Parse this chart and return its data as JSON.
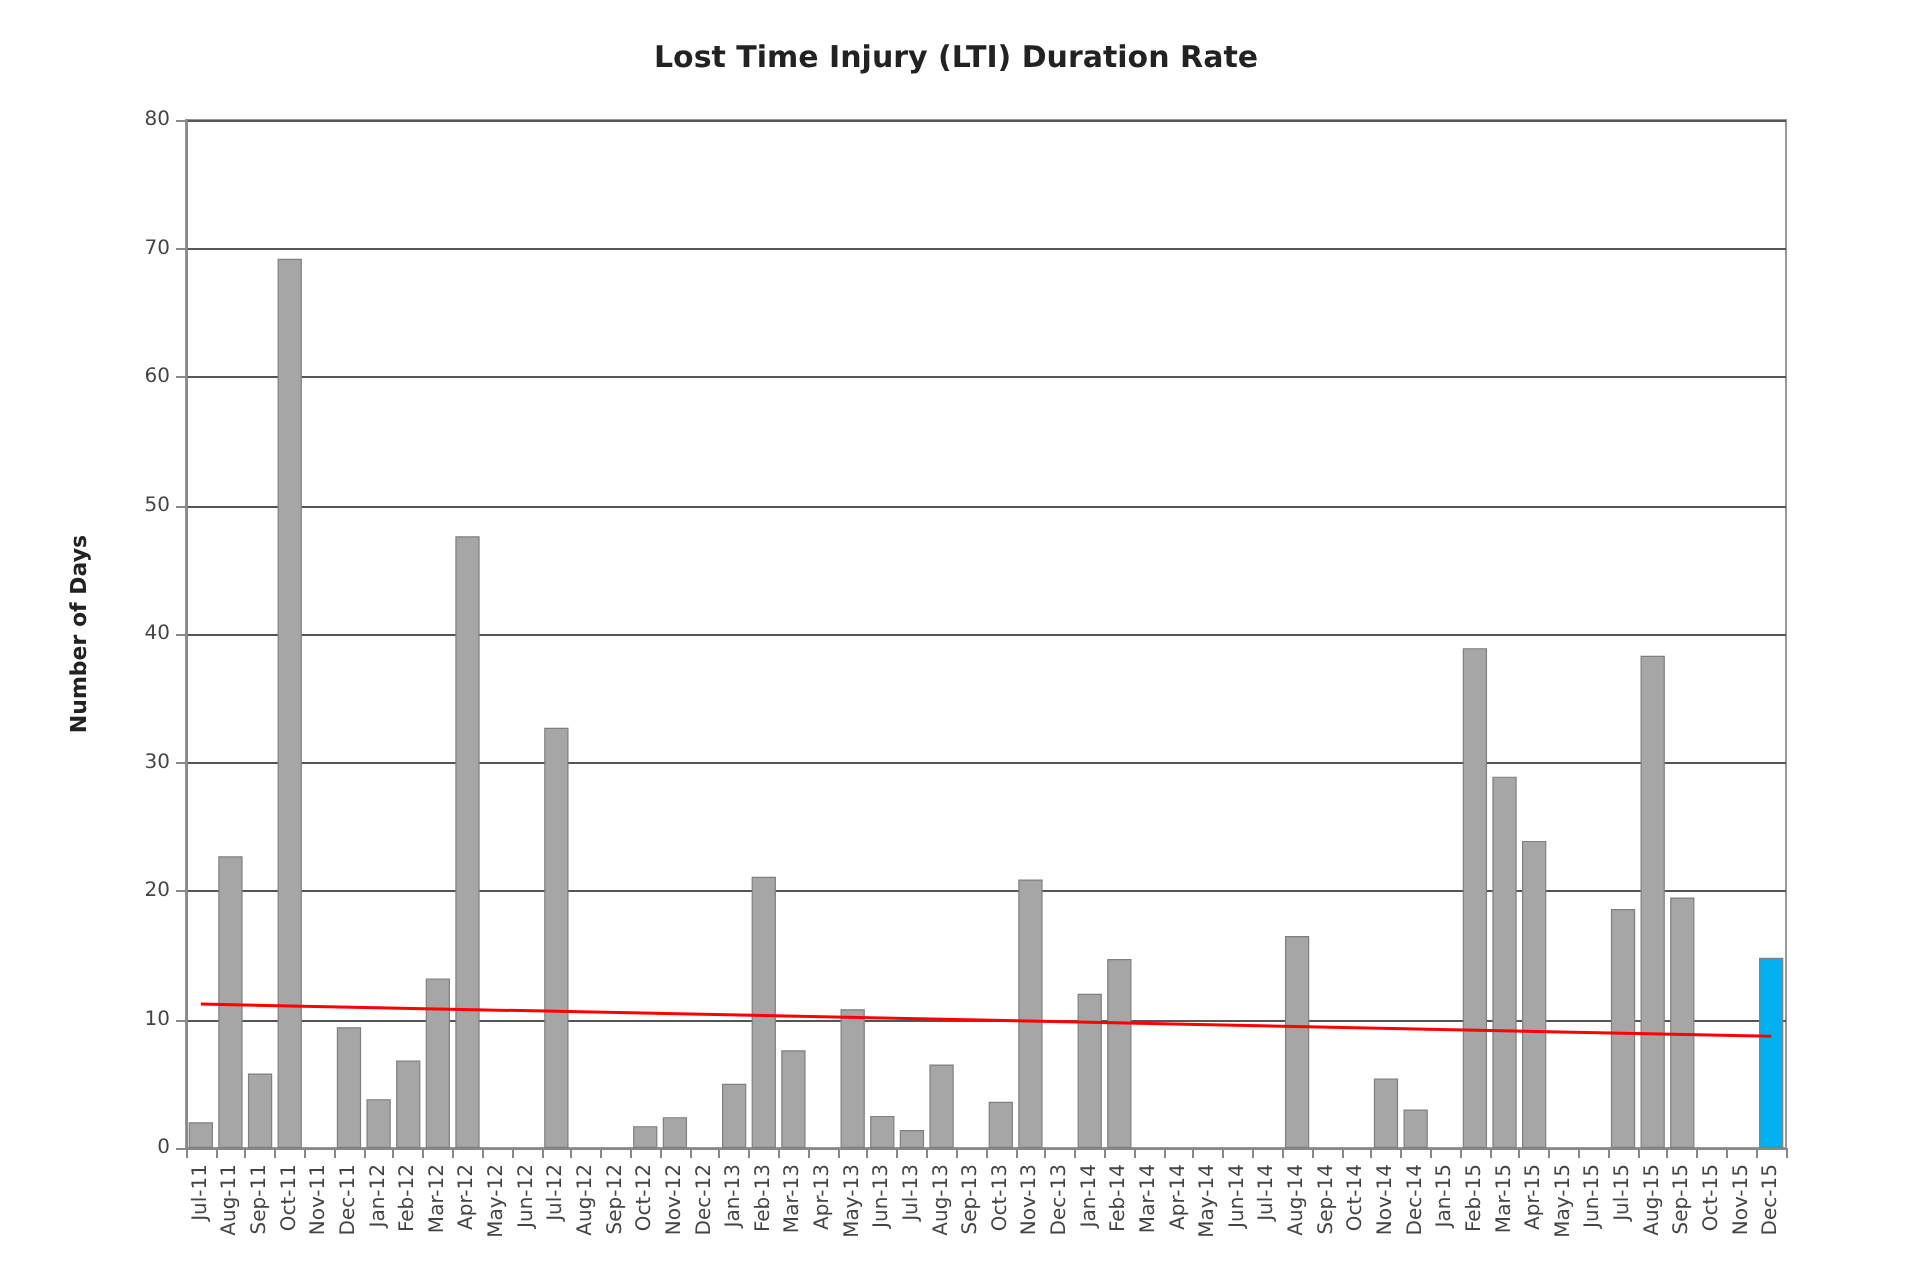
{
  "chart_data": {
    "type": "bar",
    "title": "Lost Time Injury (LTI) Duration Rate",
    "ylabel": "Number of Days",
    "categories": [
      "Jul-11",
      "Aug-11",
      "Sep-11",
      "Oct-11",
      "Nov-11",
      "Dec-11",
      "Jan-12",
      "Feb-12",
      "Mar-12",
      "Apr-12",
      "May-12",
      "Jun-12",
      "Jul-12",
      "Aug-12",
      "Sep-12",
      "Oct-12",
      "Nov-12",
      "Dec-12",
      "Jan-13",
      "Feb-13",
      "Mar-13",
      "Apr-13",
      "May-13",
      "Jun-13",
      "Jul-13",
      "Aug-13",
      "Sep-13",
      "Oct-13",
      "Nov-13",
      "Dec-13",
      "Jan-14",
      "Feb-14",
      "Mar-14",
      "Apr-14",
      "May-14",
      "Jun-14",
      "Jul-14",
      "Aug-14",
      "Sep-14",
      "Oct-14",
      "Nov-14",
      "Dec-14",
      "Jan-15",
      "Feb-15",
      "Mar-15",
      "Apr-15",
      "May-15",
      "Jun-15",
      "Jul-15",
      "Aug-15",
      "Sep-15",
      "Oct-15",
      "Nov-15",
      "Dec-15"
    ],
    "series": [
      {
        "values": [
          2,
          22.7,
          5.8,
          69.2,
          null,
          9.4,
          3.8,
          6.8,
          13.2,
          47.6,
          null,
          null,
          32.7,
          null,
          null,
          1.7,
          2.4,
          null,
          5,
          21.1,
          7.6,
          null,
          10.8,
          2.5,
          1.4,
          6.5,
          null,
          3.6,
          20.9,
          null,
          12,
          14.7,
          null,
          null,
          null,
          null,
          null,
          16.5,
          null,
          null,
          5.4,
          3,
          null,
          38.9,
          28.9,
          23.9,
          null,
          null,
          18.6,
          38.3,
          19.5,
          null,
          null,
          14.8
        ],
        "colors": [
          "#a6a6a6",
          "#a6a6a6",
          "#a6a6a6",
          "#a6a6a6",
          "#a6a6a6",
          "#a6a6a6",
          "#a6a6a6",
          "#a6a6a6",
          "#a6a6a6",
          "#a6a6a6",
          "#a6a6a6",
          "#a6a6a6",
          "#a6a6a6",
          "#a6a6a6",
          "#a6a6a6",
          "#a6a6a6",
          "#a6a6a6",
          "#a6a6a6",
          "#a6a6a6",
          "#a6a6a6",
          "#a6a6a6",
          "#a6a6a6",
          "#a6a6a6",
          "#a6a6a6",
          "#a6a6a6",
          "#a6a6a6",
          "#a6a6a6",
          "#a6a6a6",
          "#a6a6a6",
          "#a6a6a6",
          "#a6a6a6",
          "#a6a6a6",
          "#a6a6a6",
          "#a6a6a6",
          "#a6a6a6",
          "#a6a6a6",
          "#a6a6a6",
          "#a6a6a6",
          "#a6a6a6",
          "#a6a6a6",
          "#a6a6a6",
          "#a6a6a6",
          "#a6a6a6",
          "#a6a6a6",
          "#a6a6a6",
          "#a6a6a6",
          "#a6a6a6",
          "#a6a6a6",
          "#a6a6a6",
          "#a6a6a6",
          "#a6a6a6",
          "#a6a6a6",
          "#a6a6a6",
          "#00b0f0"
        ]
      },
      {
        "type": "line",
        "color": "#ff0000",
        "x": [
          "Jul-11",
          "Dec-15"
        ],
        "values": [
          11.2,
          8.7
        ]
      }
    ],
    "ylim": [
      0,
      80
    ],
    "yticks": [
      0,
      10,
      20,
      30,
      40,
      50,
      60,
      70,
      80
    ],
    "grid": "y",
    "marker": "none"
  }
}
